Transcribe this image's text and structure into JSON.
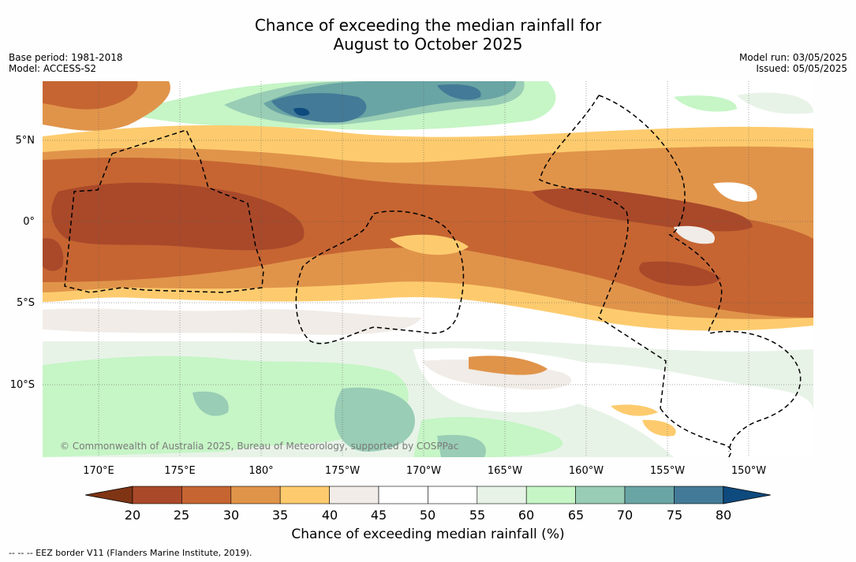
{
  "title_line1": "Chance of exceeding the median rainfall for",
  "title_line2": "August to October 2025",
  "meta_left": {
    "base_period": "Base period: 1981-2018",
    "model": "Model: ACCESS-S2"
  },
  "meta_right": {
    "model_run": "Model run: 03/05/2025",
    "issued": "Issued: 05/05/2025"
  },
  "lat_labels": [
    "5°N",
    "0°",
    "5°S",
    "10°S"
  ],
  "lon_labels": [
    "170°E",
    "175°E",
    "180°",
    "175°W",
    "170°W",
    "165°W",
    "160°W",
    "155°W",
    "150°W"
  ],
  "copyright": "© Commonwealth of Australia 2025, Bureau of Meteorology, supported by COSPPac",
  "colorbar": {
    "ticks": [
      "20",
      "25",
      "30",
      "35",
      "40",
      "45",
      "50",
      "55",
      "60",
      "65",
      "70",
      "75",
      "80"
    ],
    "colors": [
      "#7f3414",
      "#a9492a",
      "#c66532",
      "#e0944a",
      "#fdcb6e",
      "#f1ece7",
      "#ffffff",
      "#ffffff",
      "#e8f3e8",
      "#c6f5c6",
      "#99cdb5",
      "#6aa5a5",
      "#437a97",
      "#0e4a7e"
    ],
    "title": "Chance of exceeding median rainfall (%)"
  },
  "footnote": "--  --  -- EEZ border V11 (Flanders Marine Institute, 2019)."
}
